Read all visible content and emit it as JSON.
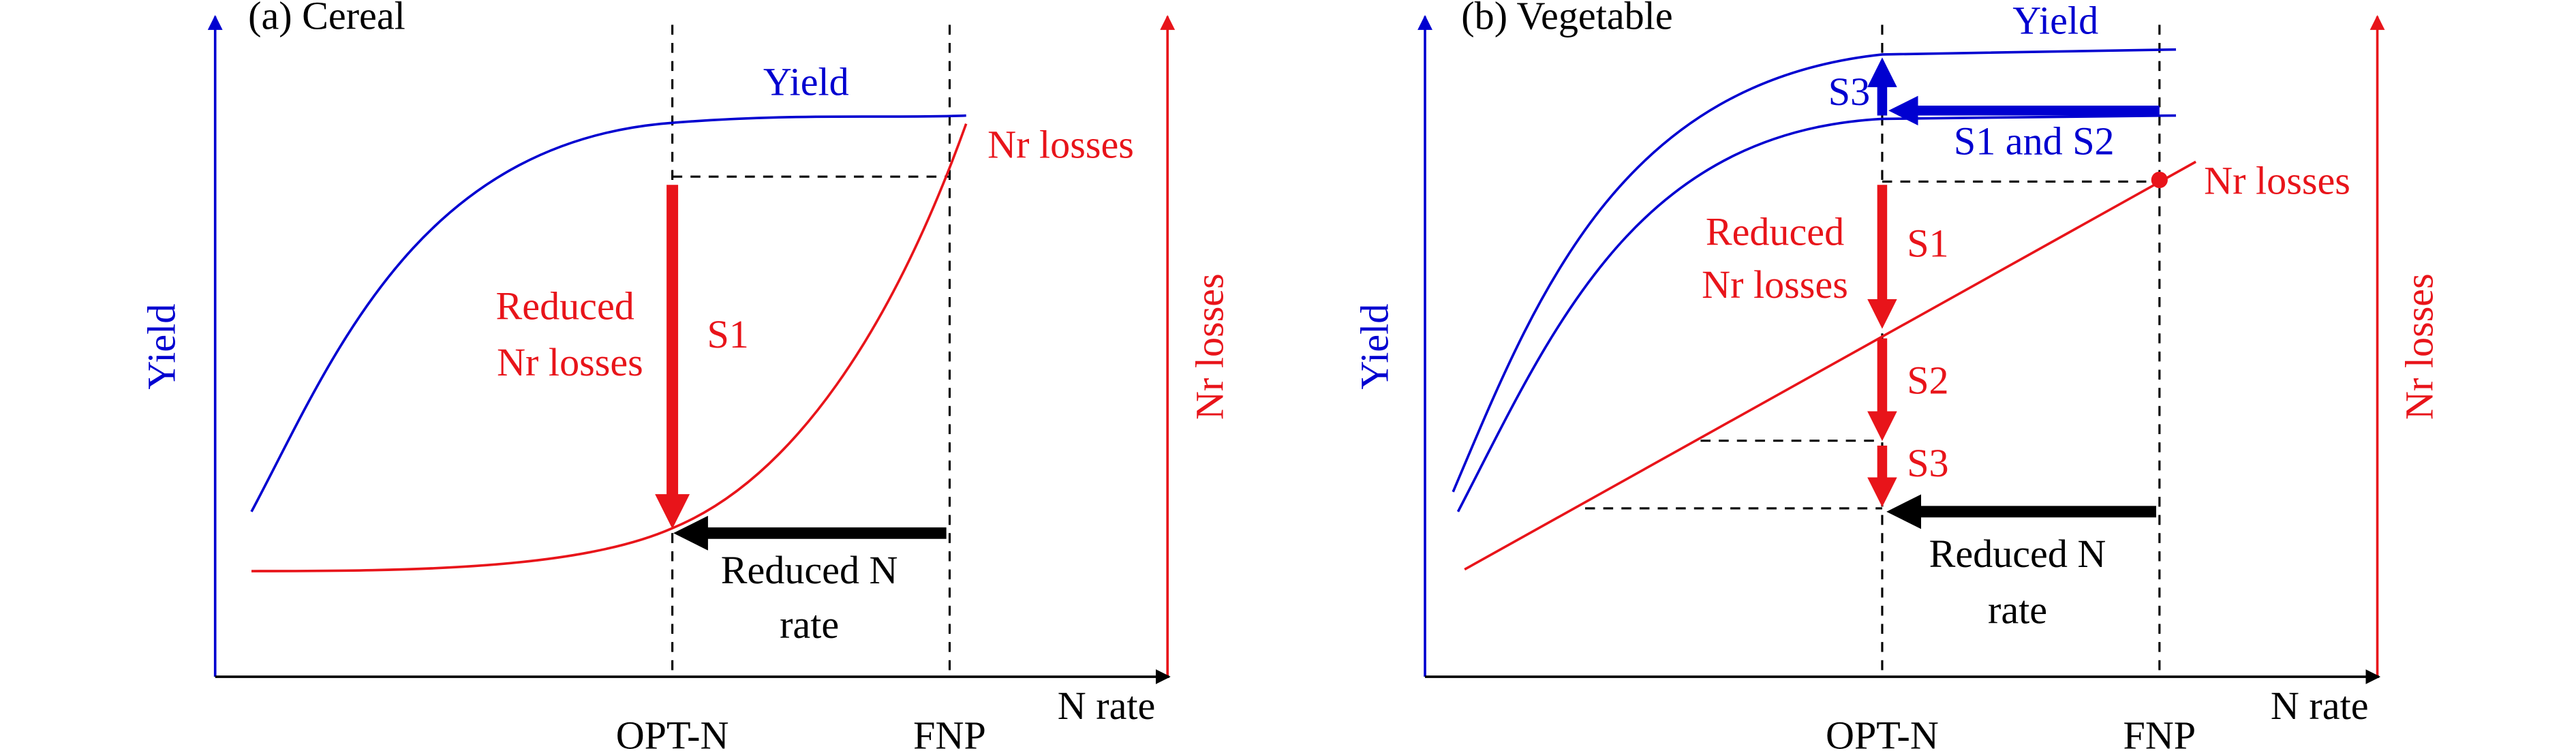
{
  "panels": [
    {
      "title": "(a) Cereal",
      "y_axis": "Yield",
      "y2_axis": "Nr losses",
      "x_axis": "N rate",
      "x_ticks": [
        "OPT-N",
        "FNP"
      ],
      "annotations": [
        "Yield",
        "Nr losses",
        "Reduced",
        "Nr losses",
        "S1",
        "Reduced N",
        "rate"
      ]
    },
    {
      "title": "(b) Vegetable",
      "y_axis": "Yield",
      "y2_axis": "Nr losses",
      "x_axis": "N rate",
      "x_ticks": [
        "OPT-N",
        "FNP"
      ],
      "annotations": [
        "Yield",
        "S3",
        "S1 and S2",
        "Nr losses",
        "Reduced",
        "Nr losses",
        "S1",
        "S2",
        "S3",
        "Reduced N",
        "rate"
      ]
    }
  ]
}
